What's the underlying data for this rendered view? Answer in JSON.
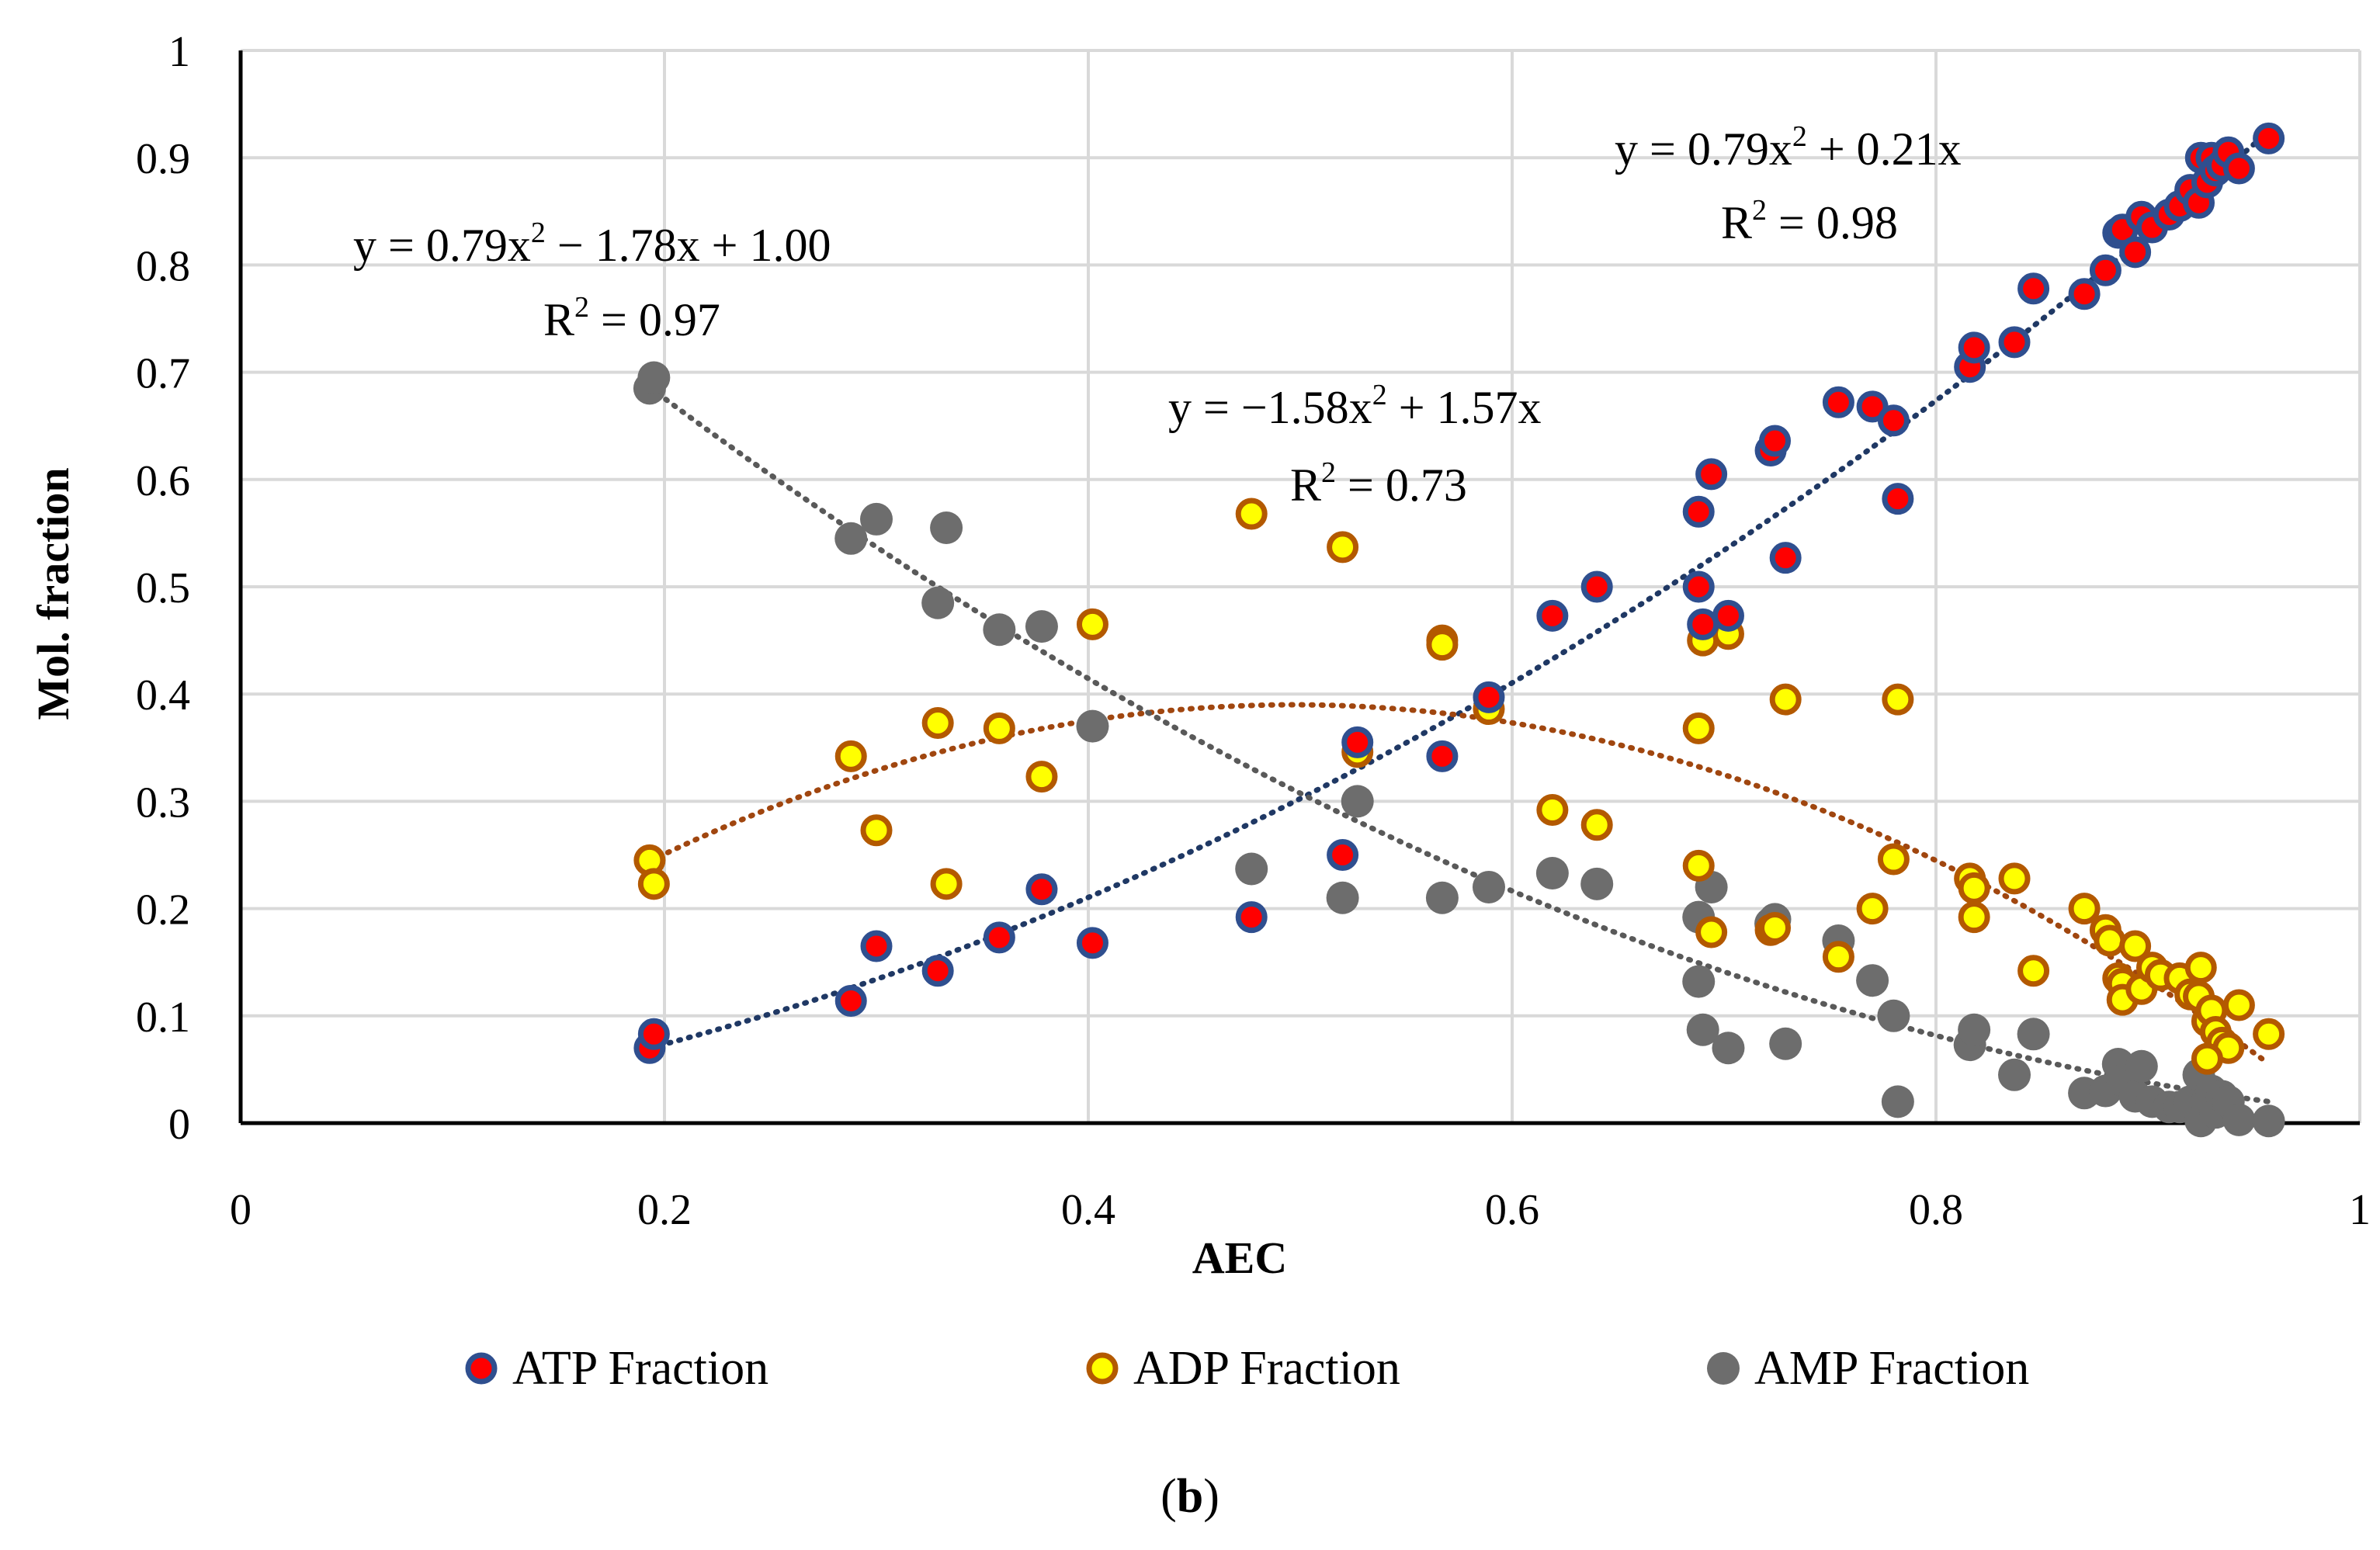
{
  "chart_data": {
    "type": "scatter",
    "xlabel": "AEC",
    "ylabel": "Mol. fraction",
    "xlim": [
      0,
      1
    ],
    "ylim": [
      0,
      1
    ],
    "x_ticks": [
      "0",
      "0.2",
      "0.4",
      "0.6",
      "0.8",
      "1"
    ],
    "y_ticks": [
      "0",
      "0.1",
      "0.2",
      "0.3",
      "0.4",
      "0.5",
      "0.6",
      "0.7",
      "0.8",
      "0.9",
      "1"
    ],
    "grid": true,
    "legend_position": "bottom",
    "caption": {
      "open": "(",
      "bold": "b",
      "close": ")"
    },
    "series": [
      {
        "name": "ATP Fraction",
        "marker_fill": "#ff0000",
        "marker_edge": "#2f4f8f",
        "trend_color": "#1f3864",
        "trend": [
          0.79,
          0.21,
          0
        ],
        "equation": {
          "pre": "y = 0.79x",
          "sup": "2",
          "post": " + 0.21x"
        },
        "r2": {
          "pre": "R",
          "sup": "2",
          "post": " = 0.98"
        },
        "points": [
          [
            0.193,
            0.07
          ],
          [
            0.195,
            0.083
          ],
          [
            0.288,
            0.114
          ],
          [
            0.3,
            0.165
          ],
          [
            0.329,
            0.142
          ],
          [
            0.358,
            0.173
          ],
          [
            0.378,
            0.218
          ],
          [
            0.402,
            0.168
          ],
          [
            0.477,
            0.192
          ],
          [
            0.52,
            0.25
          ],
          [
            0.527,
            0.355
          ],
          [
            0.567,
            0.342
          ],
          [
            0.589,
            0.397
          ],
          [
            0.619,
            0.473
          ],
          [
            0.64,
            0.5
          ],
          [
            0.688,
            0.5
          ],
          [
            0.688,
            0.57
          ],
          [
            0.69,
            0.465
          ],
          [
            0.694,
            0.605
          ],
          [
            0.702,
            0.473
          ],
          [
            0.722,
            0.627
          ],
          [
            0.724,
            0.636
          ],
          [
            0.729,
            0.527
          ],
          [
            0.754,
            0.672
          ],
          [
            0.77,
            0.668
          ],
          [
            0.78,
            0.655
          ],
          [
            0.782,
            0.582
          ],
          [
            0.816,
            0.705
          ],
          [
            0.818,
            0.723
          ],
          [
            0.837,
            0.728
          ],
          [
            0.846,
            0.778
          ],
          [
            0.87,
            0.773
          ],
          [
            0.88,
            0.795
          ],
          [
            0.886,
            0.83
          ],
          [
            0.888,
            0.833
          ],
          [
            0.894,
            0.812
          ],
          [
            0.897,
            0.845
          ],
          [
            0.902,
            0.835
          ],
          [
            0.91,
            0.847
          ],
          [
            0.915,
            0.855
          ],
          [
            0.92,
            0.87
          ],
          [
            0.924,
            0.858
          ],
          [
            0.925,
            0.9
          ],
          [
            0.928,
            0.877
          ],
          [
            0.93,
            0.9
          ],
          [
            0.932,
            0.888
          ],
          [
            0.935,
            0.893
          ],
          [
            0.938,
            0.905
          ],
          [
            0.943,
            0.89
          ],
          [
            0.957,
            0.918
          ]
        ]
      },
      {
        "name": "ADP Fraction",
        "marker_fill": "#ffff00",
        "marker_edge": "#b35900",
        "trend_color": "#a0460f",
        "trend": [
          -1.58,
          1.57,
          0
        ],
        "equation": {
          "pre": "y = −1.58x",
          "sup": "2",
          "post": " + 1.57x"
        },
        "r2": {
          "pre": "R",
          "sup": "2",
          "post": " = 0.73"
        },
        "points": [
          [
            0.193,
            0.245
          ],
          [
            0.195,
            0.223
          ],
          [
            0.288,
            0.342
          ],
          [
            0.3,
            0.273
          ],
          [
            0.329,
            0.373
          ],
          [
            0.333,
            0.223
          ],
          [
            0.358,
            0.368
          ],
          [
            0.378,
            0.323
          ],
          [
            0.402,
            0.465
          ],
          [
            0.477,
            0.568
          ],
          [
            0.52,
            0.537
          ],
          [
            0.527,
            0.346
          ],
          [
            0.567,
            0.45
          ],
          [
            0.567,
            0.446
          ],
          [
            0.589,
            0.386
          ],
          [
            0.619,
            0.292
          ],
          [
            0.64,
            0.278
          ],
          [
            0.688,
            0.368
          ],
          [
            0.688,
            0.24
          ],
          [
            0.69,
            0.45
          ],
          [
            0.694,
            0.178
          ],
          [
            0.702,
            0.456
          ],
          [
            0.722,
            0.18
          ],
          [
            0.724,
            0.182
          ],
          [
            0.729,
            0.395
          ],
          [
            0.754,
            0.155
          ],
          [
            0.77,
            0.2
          ],
          [
            0.78,
            0.246
          ],
          [
            0.782,
            0.395
          ],
          [
            0.816,
            0.228
          ],
          [
            0.818,
            0.219
          ],
          [
            0.818,
            0.192
          ],
          [
            0.837,
            0.228
          ],
          [
            0.846,
            0.142
          ],
          [
            0.87,
            0.2
          ],
          [
            0.88,
            0.18
          ],
          [
            0.882,
            0.17
          ],
          [
            0.886,
            0.135
          ],
          [
            0.888,
            0.13
          ],
          [
            0.888,
            0.115
          ],
          [
            0.894,
            0.165
          ],
          [
            0.897,
            0.125
          ],
          [
            0.902,
            0.145
          ],
          [
            0.906,
            0.138
          ],
          [
            0.915,
            0.135
          ],
          [
            0.92,
            0.12
          ],
          [
            0.924,
            0.118
          ],
          [
            0.925,
            0.145
          ],
          [
            0.928,
            0.095
          ],
          [
            0.93,
            0.105
          ],
          [
            0.932,
            0.085
          ],
          [
            0.935,
            0.075
          ],
          [
            0.938,
            0.07
          ],
          [
            0.943,
            0.11
          ],
          [
            0.957,
            0.083
          ],
          [
            0.928,
            0.06
          ]
        ]
      },
      {
        "name": "AMP Fraction",
        "marker_fill": "#6d6d6d",
        "marker_edge": "#6d6d6d",
        "trend_color": "#595959",
        "trend": [
          0.79,
          -1.78,
          1.0
        ],
        "equation": {
          "pre": "y = 0.79x",
          "sup": "2",
          "post": " − 1.78x + 1.00"
        },
        "r2": {
          "pre": "R",
          "sup": "2",
          "post": " = 0.97"
        },
        "points": [
          [
            0.193,
            0.685
          ],
          [
            0.195,
            0.695
          ],
          [
            0.288,
            0.545
          ],
          [
            0.3,
            0.563
          ],
          [
            0.329,
            0.485
          ],
          [
            0.333,
            0.555
          ],
          [
            0.358,
            0.46
          ],
          [
            0.378,
            0.463
          ],
          [
            0.402,
            0.37
          ],
          [
            0.477,
            0.237
          ],
          [
            0.52,
            0.21
          ],
          [
            0.527,
            0.3
          ],
          [
            0.567,
            0.21
          ],
          [
            0.589,
            0.22
          ],
          [
            0.619,
            0.233
          ],
          [
            0.64,
            0.223
          ],
          [
            0.688,
            0.132
          ],
          [
            0.688,
            0.192
          ],
          [
            0.69,
            0.087
          ],
          [
            0.694,
            0.22
          ],
          [
            0.702,
            0.07
          ],
          [
            0.722,
            0.186
          ],
          [
            0.724,
            0.19
          ],
          [
            0.729,
            0.074
          ],
          [
            0.754,
            0.17
          ],
          [
            0.77,
            0.133
          ],
          [
            0.78,
            0.1
          ],
          [
            0.782,
            0.02
          ],
          [
            0.816,
            0.073
          ],
          [
            0.818,
            0.087
          ],
          [
            0.837,
            0.045
          ],
          [
            0.846,
            0.083
          ],
          [
            0.87,
            0.028
          ],
          [
            0.88,
            0.03
          ],
          [
            0.886,
            0.055
          ],
          [
            0.888,
            0.04
          ],
          [
            0.894,
            0.025
          ],
          [
            0.897,
            0.053
          ],
          [
            0.902,
            0.02
          ],
          [
            0.91,
            0.015
          ],
          [
            0.915,
            0.015
          ],
          [
            0.92,
            0.02
          ],
          [
            0.924,
            0.045
          ],
          [
            0.925,
            0.002
          ],
          [
            0.928,
            0.02
          ],
          [
            0.93,
            0.03
          ],
          [
            0.932,
            0.01
          ],
          [
            0.935,
            0.025
          ],
          [
            0.938,
            0.02
          ],
          [
            0.943,
            0.003
          ],
          [
            0.957,
            0.002
          ]
        ]
      }
    ]
  }
}
